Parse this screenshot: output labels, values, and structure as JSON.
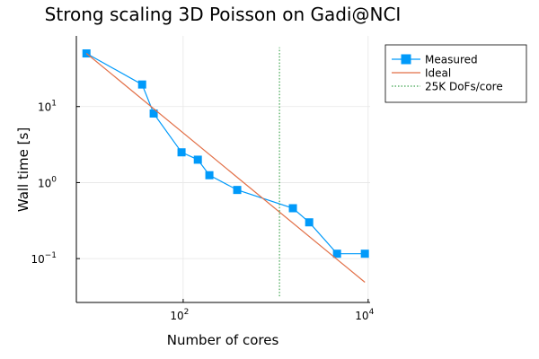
{
  "chart_data": {
    "type": "line",
    "title": "Strong scaling 3D Poisson on Gadi@NCI",
    "xlabel": "Number of cores",
    "ylabel": "Wall time [s]",
    "xscale": "log",
    "yscale": "log",
    "xlim": [
      7,
      10500
    ],
    "ylim": [
      0.0265,
      85
    ],
    "grid": true,
    "legend_position": "top-right outside",
    "x_ticks": [
      {
        "value": 100,
        "base": "10",
        "exp": "2"
      },
      {
        "value": 10000,
        "base": "10",
        "exp": "4"
      }
    ],
    "y_ticks": [
      {
        "value": 0.1,
        "base": "10",
        "exp": "−1"
      },
      {
        "value": 1,
        "base": "10",
        "exp": "0"
      },
      {
        "value": 10,
        "base": "10",
        "exp": "1"
      }
    ],
    "series": [
      {
        "name": "Measured",
        "style": "line-square",
        "color": "#009AFA",
        "x": [
          9,
          36,
          48,
          96,
          144,
          192,
          384,
          1536,
          2304,
          4608,
          9216
        ],
        "y": [
          50,
          19.5,
          8.1,
          2.5,
          2.0,
          1.25,
          0.8,
          0.46,
          0.3,
          0.116,
          0.116
        ]
      },
      {
        "name": "Ideal",
        "style": "line",
        "color": "#E26F46",
        "x": [
          9,
          9216
        ],
        "y": [
          50,
          0.0488
        ]
      },
      {
        "name": "25K DoFs/core",
        "style": "dotted-vline",
        "color": "#3EA44E",
        "x": [
          1100,
          1100
        ],
        "y": [
          0.032,
          60
        ]
      }
    ]
  }
}
